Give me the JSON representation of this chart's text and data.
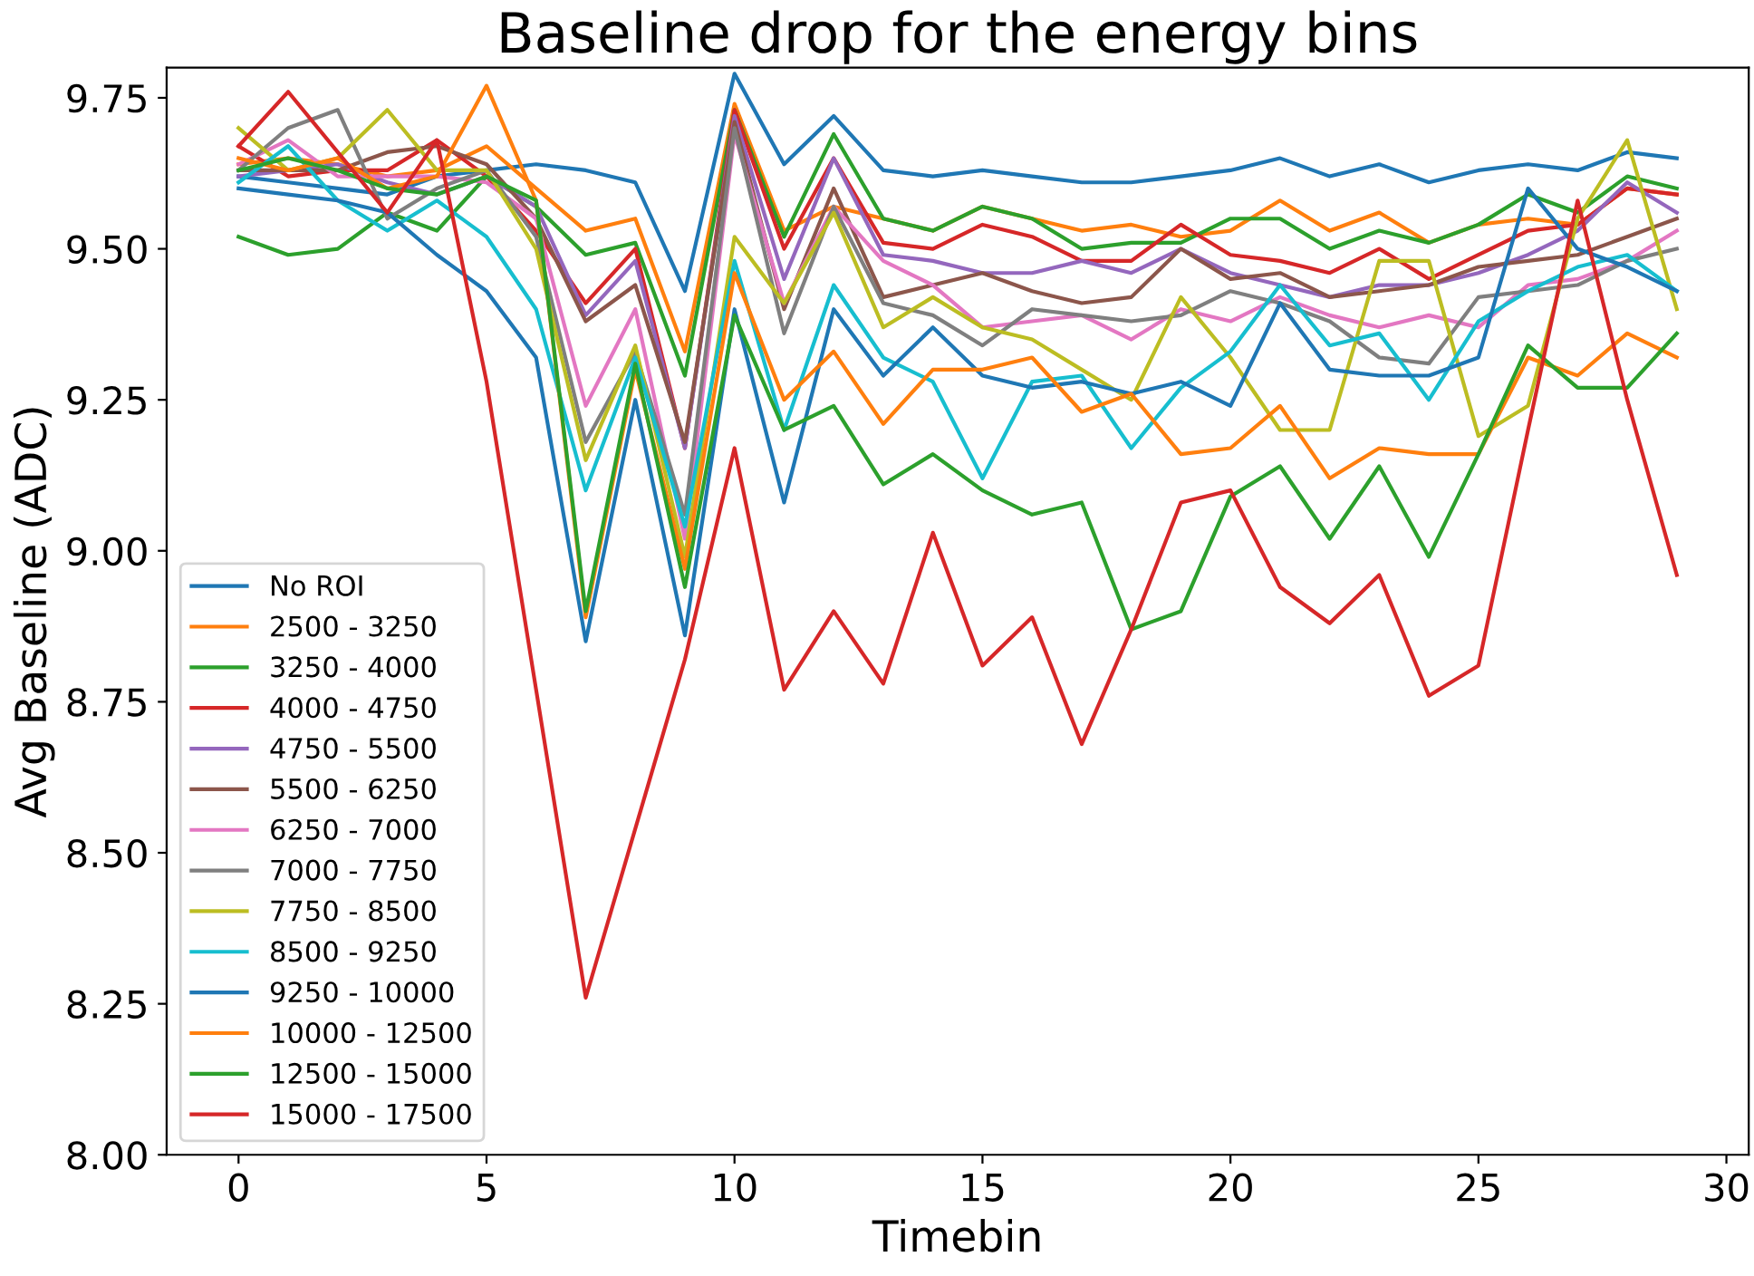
{
  "chart_data": {
    "type": "line",
    "title": "Baseline drop for the energy bins",
    "xlabel": "Timebin",
    "ylabel": "Avg Baseline (ADC)",
    "x": [
      0,
      1,
      2,
      3,
      4,
      5,
      6,
      7,
      8,
      9,
      10,
      11,
      12,
      13,
      14,
      15,
      16,
      17,
      18,
      19,
      20,
      21,
      22,
      23,
      24,
      25,
      26,
      27,
      28,
      29
    ],
    "xlim": [
      -1.45,
      30.45
    ],
    "xticks": [
      0,
      5,
      10,
      15,
      20,
      25,
      30
    ],
    "ylim": [
      8.0,
      9.8
    ],
    "yticks": [
      {
        "value": 8.0,
        "label": "8.00"
      },
      8.25,
      {
        "value": 8.5,
        "label": "8.50"
      },
      8.75,
      {
        "value": 9.0,
        "label": "9.00"
      },
      9.25,
      {
        "value": 9.5,
        "label": "9.50"
      },
      9.75
    ],
    "legend": "lower left",
    "grid": false,
    "marker": "none",
    "line_style": "solid",
    "series": [
      {
        "name": "No ROI",
        "color": "#1f77b4",
        "values": [
          9.62,
          9.61,
          9.6,
          9.59,
          9.62,
          9.63,
          9.64,
          9.63,
          9.61,
          9.43,
          9.79,
          9.64,
          9.72,
          9.63,
          9.62,
          9.63,
          9.62,
          9.61,
          9.61,
          9.62,
          9.63,
          9.65,
          9.62,
          9.64,
          9.61,
          9.63,
          9.64,
          9.63,
          9.66,
          9.65
        ]
      },
      {
        "name": "2500 - 3250",
        "color": "#ff7f0e",
        "values": [
          9.64,
          9.65,
          9.64,
          9.62,
          9.63,
          9.67,
          9.6,
          9.53,
          9.55,
          9.33,
          9.74,
          9.53,
          9.57,
          9.55,
          9.53,
          9.57,
          9.55,
          9.53,
          9.54,
          9.52,
          9.53,
          9.58,
          9.53,
          9.56,
          9.51,
          9.54,
          9.55,
          9.54,
          9.6,
          9.59
        ]
      },
      {
        "name": "3250 - 4000",
        "color": "#2ca02c",
        "values": [
          9.52,
          9.49,
          9.5,
          9.56,
          9.53,
          9.62,
          9.57,
          9.49,
          9.51,
          9.29,
          9.73,
          9.52,
          9.69,
          9.55,
          9.53,
          9.57,
          9.55,
          9.5,
          9.51,
          9.51,
          9.55,
          9.55,
          9.5,
          9.53,
          9.51,
          9.54,
          9.59,
          9.56,
          9.62,
          9.6
        ]
      },
      {
        "name": "4000 - 4750",
        "color": "#d62728",
        "values": [
          9.67,
          9.62,
          9.63,
          9.63,
          9.68,
          9.62,
          9.53,
          9.41,
          9.5,
          9.17,
          9.73,
          9.5,
          9.65,
          9.51,
          9.5,
          9.54,
          9.52,
          9.48,
          9.48,
          9.54,
          9.49,
          9.48,
          9.46,
          9.5,
          9.45,
          9.49,
          9.53,
          9.54,
          9.6,
          9.59
        ]
      },
      {
        "name": "4750 - 5500",
        "color": "#9467bd",
        "values": [
          9.62,
          9.63,
          9.64,
          9.61,
          9.59,
          9.62,
          9.57,
          9.39,
          9.48,
          9.17,
          9.72,
          9.45,
          9.65,
          9.49,
          9.48,
          9.46,
          9.46,
          9.48,
          9.46,
          9.5,
          9.46,
          9.44,
          9.42,
          9.44,
          9.44,
          9.46,
          9.49,
          9.53,
          9.61,
          9.56
        ]
      },
      {
        "name": "5500 - 6250",
        "color": "#8c564b",
        "values": [
          9.63,
          9.63,
          9.63,
          9.66,
          9.67,
          9.64,
          9.55,
          9.38,
          9.44,
          9.18,
          9.71,
          9.4,
          9.6,
          9.42,
          9.44,
          9.46,
          9.43,
          9.41,
          9.42,
          9.5,
          9.45,
          9.46,
          9.42,
          9.43,
          9.44,
          9.47,
          9.48,
          9.49,
          9.52,
          9.55
        ]
      },
      {
        "name": "6250 - 7000",
        "color": "#e377c2",
        "values": [
          9.64,
          9.68,
          9.62,
          9.62,
          9.62,
          9.61,
          9.55,
          9.24,
          9.4,
          9.02,
          9.69,
          9.41,
          9.57,
          9.48,
          9.44,
          9.37,
          9.38,
          9.39,
          9.35,
          9.4,
          9.38,
          9.42,
          9.39,
          9.37,
          9.39,
          9.37,
          9.44,
          9.45,
          9.48,
          9.53
        ]
      },
      {
        "name": "7000 - 7750",
        "color": "#7f7f7f",
        "values": [
          9.63,
          9.7,
          9.73,
          9.55,
          9.6,
          9.63,
          9.52,
          9.18,
          9.33,
          9.06,
          9.7,
          9.36,
          9.57,
          9.41,
          9.39,
          9.34,
          9.4,
          9.39,
          9.38,
          9.39,
          9.43,
          9.41,
          9.38,
          9.32,
          9.31,
          9.42,
          9.43,
          9.44,
          9.48,
          9.5
        ]
      },
      {
        "name": "7750 - 8500",
        "color": "#bcbd22",
        "values": [
          9.7,
          9.63,
          9.65,
          9.73,
          9.63,
          9.63,
          9.5,
          9.15,
          9.34,
          8.99,
          9.52,
          9.41,
          9.56,
          9.37,
          9.42,
          9.37,
          9.35,
          9.3,
          9.25,
          9.42,
          9.32,
          9.2,
          9.2,
          9.48,
          9.48,
          9.19,
          9.24,
          9.55,
          9.68,
          9.4
        ]
      },
      {
        "name": "8500 - 9250",
        "color": "#17becf",
        "values": [
          9.61,
          9.67,
          9.58,
          9.53,
          9.58,
          9.52,
          9.4,
          9.1,
          9.32,
          9.04,
          9.48,
          9.2,
          9.44,
          9.32,
          9.28,
          9.12,
          9.28,
          9.29,
          9.17,
          9.27,
          9.33,
          9.44,
          9.34,
          9.36,
          9.25,
          9.38,
          9.43,
          9.47,
          9.49,
          9.43
        ]
      },
      {
        "name": "9250 - 10000",
        "color": "#1f77b4",
        "values": [
          9.6,
          9.59,
          9.58,
          9.56,
          9.49,
          9.43,
          9.32,
          8.85,
          9.25,
          8.86,
          9.4,
          9.08,
          9.4,
          9.29,
          9.37,
          9.29,
          9.27,
          9.28,
          9.26,
          9.28,
          9.24,
          9.41,
          9.3,
          9.29,
          9.29,
          9.32,
          9.6,
          9.5,
          9.47,
          9.43
        ]
      },
      {
        "name": "10000 - 12500",
        "color": "#ff7f0e",
        "values": [
          9.65,
          9.63,
          9.65,
          9.6,
          9.62,
          9.77,
          9.58,
          8.89,
          9.3,
          8.97,
          9.46,
          9.25,
          9.33,
          9.21,
          9.3,
          9.3,
          9.32,
          9.23,
          9.26,
          9.16,
          9.17,
          9.24,
          9.12,
          9.17,
          9.16,
          9.16,
          9.32,
          9.29,
          9.36,
          9.32
        ]
      },
      {
        "name": "12500 - 15000",
        "color": "#2ca02c",
        "values": [
          9.63,
          9.65,
          9.63,
          9.6,
          9.59,
          9.62,
          9.58,
          8.9,
          9.31,
          8.94,
          9.39,
          9.2,
          9.24,
          9.11,
          9.16,
          9.1,
          9.06,
          9.08,
          8.87,
          8.9,
          9.09,
          9.14,
          9.02,
          9.14,
          8.99,
          9.16,
          9.34,
          9.27,
          9.27,
          9.36
        ]
      },
      {
        "name": "15000 - 17500",
        "color": "#d62728",
        "values": [
          9.67,
          9.76,
          9.66,
          9.56,
          9.68,
          9.28,
          8.77,
          8.26,
          8.54,
          8.82,
          9.17,
          8.77,
          8.9,
          8.78,
          9.03,
          8.81,
          8.89,
          8.68,
          8.87,
          9.08,
          9.1,
          8.94,
          8.88,
          8.96,
          8.76,
          8.81,
          9.2,
          9.58,
          9.25,
          8.96
        ]
      }
    ]
  }
}
